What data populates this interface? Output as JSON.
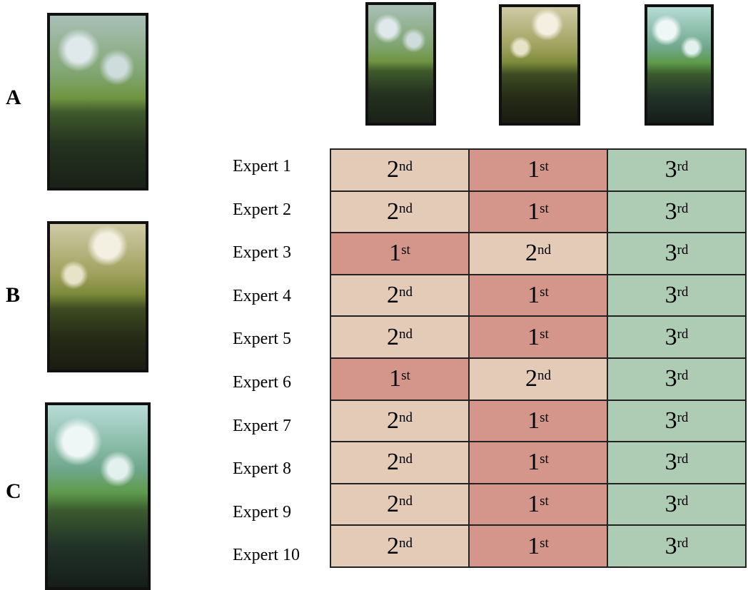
{
  "images": [
    {
      "label": "A"
    },
    {
      "label": "B"
    },
    {
      "label": "C"
    }
  ],
  "rank_colors": {
    "1": "#d4968b",
    "2": "#e3cbb8",
    "3": "#aecbb4"
  },
  "table": {
    "rows": [
      {
        "label": "Expert 1",
        "ranks": [
          {
            "num": "2",
            "sup": "nd"
          },
          {
            "num": "1",
            "sup": "st"
          },
          {
            "num": "3",
            "sup": "rd"
          }
        ]
      },
      {
        "label": "Expert 2",
        "ranks": [
          {
            "num": "2",
            "sup": "nd"
          },
          {
            "num": "1",
            "sup": "st"
          },
          {
            "num": "3",
            "sup": "rd"
          }
        ]
      },
      {
        "label": "Expert 3",
        "ranks": [
          {
            "num": "1",
            "sup": "st"
          },
          {
            "num": "2",
            "sup": "nd"
          },
          {
            "num": "3",
            "sup": "rd"
          }
        ]
      },
      {
        "label": "Expert 4",
        "ranks": [
          {
            "num": "2",
            "sup": "nd"
          },
          {
            "num": "1",
            "sup": "st"
          },
          {
            "num": "3",
            "sup": "rd"
          }
        ]
      },
      {
        "label": "Expert 5",
        "ranks": [
          {
            "num": "2",
            "sup": "nd"
          },
          {
            "num": "1",
            "sup": "st"
          },
          {
            "num": "3",
            "sup": "rd"
          }
        ]
      },
      {
        "label": "Expert 6",
        "ranks": [
          {
            "num": "1",
            "sup": "st"
          },
          {
            "num": "2",
            "sup": "nd"
          },
          {
            "num": "3",
            "sup": "rd"
          }
        ]
      },
      {
        "label": "Expert 7",
        "ranks": [
          {
            "num": "2",
            "sup": "nd"
          },
          {
            "num": "1",
            "sup": "st"
          },
          {
            "num": "3",
            "sup": "rd"
          }
        ]
      },
      {
        "label": "Expert 8",
        "ranks": [
          {
            "num": "2",
            "sup": "nd"
          },
          {
            "num": "1",
            "sup": "st"
          },
          {
            "num": "3",
            "sup": "rd"
          }
        ]
      },
      {
        "label": "Expert 9",
        "ranks": [
          {
            "num": "2",
            "sup": "nd"
          },
          {
            "num": "1",
            "sup": "st"
          },
          {
            "num": "3",
            "sup": "rd"
          }
        ]
      },
      {
        "label": "Expert 10",
        "ranks": [
          {
            "num": "2",
            "sup": "nd"
          },
          {
            "num": "1",
            "sup": "st"
          },
          {
            "num": "3",
            "sup": "rd"
          }
        ]
      }
    ]
  }
}
